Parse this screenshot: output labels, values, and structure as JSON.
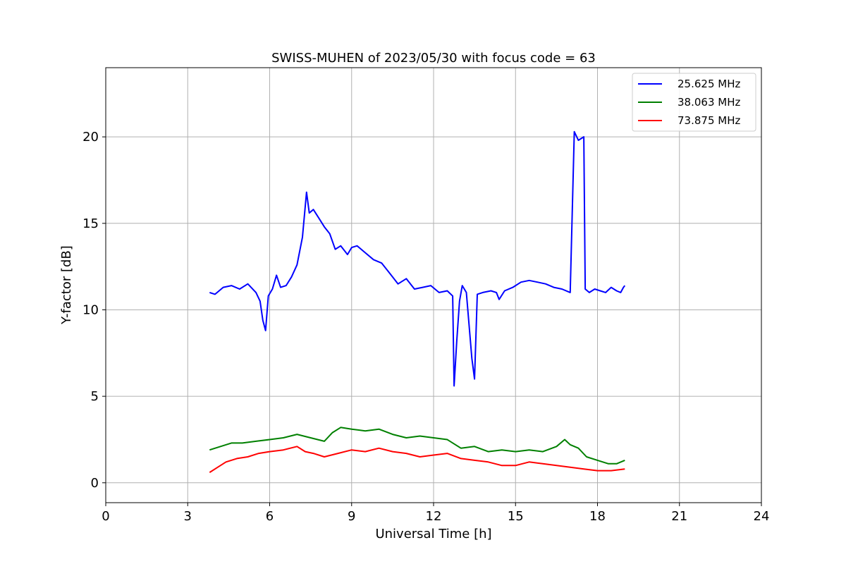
{
  "chart_data": {
    "type": "line",
    "title": "SWISS-MUHEN of 2023/05/30 with focus code = 63",
    "xlabel": "Universal Time [h]",
    "ylabel": "Y-factor [dB]",
    "xlim": [
      0,
      24
    ],
    "ylim": [
      -1.15,
      24
    ],
    "xticks": [
      0,
      3,
      6,
      9,
      12,
      15,
      18,
      21,
      24
    ],
    "yticks": [
      0,
      5,
      10,
      15,
      20
    ],
    "grid": true,
    "legend_position": "top-right",
    "series": [
      {
        "name": "25.625 MHz",
        "color": "#0000ff",
        "x": [
          3.8,
          4.0,
          4.3,
          4.6,
          4.9,
          5.2,
          5.5,
          5.65,
          5.75,
          5.85,
          5.95,
          6.1,
          6.25,
          6.4,
          6.6,
          6.8,
          7.0,
          7.2,
          7.35,
          7.45,
          7.6,
          7.8,
          8.0,
          8.2,
          8.4,
          8.6,
          8.85,
          9.0,
          9.2,
          9.5,
          9.8,
          10.1,
          10.4,
          10.7,
          11.0,
          11.3,
          11.6,
          11.9,
          12.2,
          12.5,
          12.7,
          12.75,
          12.85,
          12.95,
          13.05,
          13.2,
          13.4,
          13.5,
          13.6,
          13.8,
          14.1,
          14.3,
          14.4,
          14.6,
          14.9,
          15.2,
          15.5,
          15.8,
          16.1,
          16.4,
          16.7,
          17.0,
          17.15,
          17.3,
          17.5,
          17.55,
          17.7,
          17.9,
          18.1,
          18.3,
          18.5,
          18.7,
          18.85,
          18.95,
          19.0
        ],
        "values": [
          11.0,
          10.9,
          11.3,
          11.4,
          11.2,
          11.5,
          11.0,
          10.5,
          9.4,
          8.8,
          10.8,
          11.2,
          12.0,
          11.3,
          11.4,
          11.9,
          12.6,
          14.2,
          16.8,
          15.6,
          15.8,
          15.3,
          14.8,
          14.4,
          13.5,
          13.7,
          13.2,
          13.6,
          13.7,
          13.3,
          12.9,
          12.7,
          12.1,
          11.5,
          11.8,
          11.2,
          11.3,
          11.4,
          11.0,
          11.1,
          10.8,
          5.6,
          8.2,
          10.5,
          11.4,
          11.0,
          7.2,
          6.0,
          10.9,
          11.0,
          11.1,
          11.0,
          10.6,
          11.1,
          11.3,
          11.6,
          11.7,
          11.6,
          11.5,
          11.3,
          11.2,
          11.0,
          20.3,
          19.8,
          20.0,
          11.2,
          11.0,
          11.2,
          11.1,
          11.0,
          11.3,
          11.1,
          11.0,
          11.3,
          11.4
        ]
      },
      {
        "name": "38.063 MHz",
        "color": "#008000",
        "x": [
          3.8,
          4.2,
          4.6,
          5.0,
          5.5,
          6.0,
          6.5,
          7.0,
          7.5,
          8.0,
          8.3,
          8.6,
          9.0,
          9.5,
          10.0,
          10.5,
          11.0,
          11.5,
          12.0,
          12.5,
          13.0,
          13.5,
          14.0,
          14.5,
          15.0,
          15.5,
          16.0,
          16.5,
          16.8,
          17.0,
          17.3,
          17.6,
          18.0,
          18.4,
          18.7,
          19.0
        ],
        "values": [
          1.9,
          2.1,
          2.3,
          2.3,
          2.4,
          2.5,
          2.6,
          2.8,
          2.6,
          2.4,
          2.9,
          3.2,
          3.1,
          3.0,
          3.1,
          2.8,
          2.6,
          2.7,
          2.6,
          2.5,
          2.0,
          2.1,
          1.8,
          1.9,
          1.8,
          1.9,
          1.8,
          2.1,
          2.5,
          2.2,
          2.0,
          1.5,
          1.3,
          1.1,
          1.1,
          1.3
        ]
      },
      {
        "name": "73.875 MHz",
        "color": "#ff0000",
        "x": [
          3.8,
          4.1,
          4.4,
          4.8,
          5.2,
          5.6,
          6.0,
          6.5,
          7.0,
          7.3,
          7.6,
          8.0,
          8.5,
          9.0,
          9.5,
          10.0,
          10.5,
          11.0,
          11.5,
          12.0,
          12.5,
          13.0,
          13.5,
          14.0,
          14.5,
          15.0,
          15.5,
          16.0,
          16.5,
          17.0,
          17.5,
          18.0,
          18.5,
          19.0
        ],
        "values": [
          0.6,
          0.9,
          1.2,
          1.4,
          1.5,
          1.7,
          1.8,
          1.9,
          2.1,
          1.8,
          1.7,
          1.5,
          1.7,
          1.9,
          1.8,
          2.0,
          1.8,
          1.7,
          1.5,
          1.6,
          1.7,
          1.4,
          1.3,
          1.2,
          1.0,
          1.0,
          1.2,
          1.1,
          1.0,
          0.9,
          0.8,
          0.7,
          0.7,
          0.8
        ]
      }
    ]
  }
}
